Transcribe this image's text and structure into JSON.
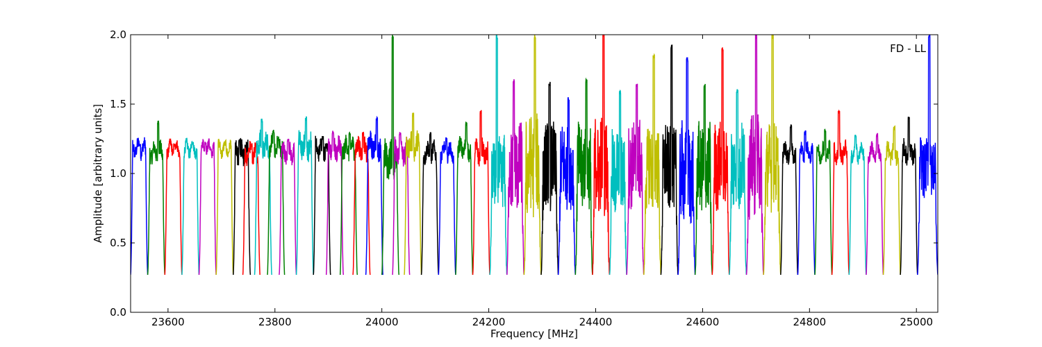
{
  "chart_data": {
    "type": "line",
    "title": "",
    "annotation": "FD - LL",
    "xlabel": "Frequency [MHz]",
    "ylabel": "Amplitude [arbitrary units]",
    "xlim": [
      23530,
      25040
    ],
    "ylim": [
      0.0,
      2.0
    ],
    "x_ticks": [
      23600,
      23800,
      24000,
      24200,
      24400,
      24600,
      24800,
      25000
    ],
    "y_ticks": [
      0.0,
      0.5,
      1.0,
      1.5,
      2.0
    ],
    "x_tick_labels": [
      "23600",
      "23800",
      "24000",
      "24200",
      "24400",
      "24600",
      "24800",
      "25000"
    ],
    "y_tick_labels": [
      "0.0",
      "0.5",
      "1.0",
      "1.5",
      "2.0"
    ],
    "grid": false,
    "color_cycle": [
      "#0000ff",
      "#008000",
      "#ff0000",
      "#00bfbf",
      "#bf00bf",
      "#bfbf00",
      "#000000"
    ],
    "channel_width_mhz": 32,
    "channel_start_mhz": 23530,
    "series": [
      {
        "color": "#0000ff",
        "x_range": [
          23530,
          23562
        ],
        "level": 1.18,
        "noise": 0.05,
        "peaks": [
          1.22
        ]
      },
      {
        "color": "#008000",
        "x_range": [
          23562,
          23594
        ],
        "level": 1.15,
        "noise": 0.06,
        "peaks": [
          1.38
        ]
      },
      {
        "color": "#ff0000",
        "x_range": [
          23594,
          23626
        ],
        "level": 1.18,
        "noise": 0.04,
        "peaks": [
          1.22
        ]
      },
      {
        "color": "#00bfbf",
        "x_range": [
          23626,
          23658
        ],
        "level": 1.18,
        "noise": 0.04,
        "peaks": [
          1.23
        ]
      },
      {
        "color": "#bf00bf",
        "x_range": [
          23658,
          23690
        ],
        "level": 1.18,
        "noise": 0.04,
        "peaks": [
          1.24
        ]
      },
      {
        "color": "#bfbf00",
        "x_range": [
          23690,
          23722
        ],
        "level": 1.18,
        "noise": 0.04,
        "peaks": [
          1.23
        ]
      },
      {
        "color": "#000000",
        "x_range": [
          23722,
          23754
        ],
        "level": 1.15,
        "noise": 0.08,
        "peaks": [
          1.25
        ]
      },
      {
        "color": "#ff0000",
        "x_range": [
          23740,
          23772
        ],
        "level": 1.15,
        "noise": 0.06,
        "peaks": [
          1.22
        ]
      },
      {
        "color": "#00bfbf",
        "x_range": [
          23762,
          23794
        ],
        "level": 1.2,
        "noise": 0.08,
        "peaks": [
          1.4
        ]
      },
      {
        "color": "#008000",
        "x_range": [
          23786,
          23818
        ],
        "level": 1.2,
        "noise": 0.06,
        "peaks": [
          1.32
        ]
      },
      {
        "color": "#bf00bf",
        "x_range": [
          23808,
          23840
        ],
        "level": 1.15,
        "noise": 0.06,
        "peaks": [
          1.25
        ]
      },
      {
        "color": "#00bfbf",
        "x_range": [
          23840,
          23872
        ],
        "level": 1.2,
        "noise": 0.08,
        "peaks": [
          1.41
        ]
      },
      {
        "color": "#000000",
        "x_range": [
          23872,
          23904
        ],
        "level": 1.18,
        "noise": 0.06,
        "peaks": [
          1.27
        ]
      },
      {
        "color": "#bf00bf",
        "x_range": [
          23896,
          23928
        ],
        "level": 1.18,
        "noise": 0.07,
        "peaks": [
          1.31
        ]
      },
      {
        "color": "#008000",
        "x_range": [
          23922,
          23954
        ],
        "level": 1.18,
        "noise": 0.07,
        "peaks": [
          1.31
        ]
      },
      {
        "color": "#ff0000",
        "x_range": [
          23946,
          23978
        ],
        "level": 1.18,
        "noise": 0.07,
        "peaks": [
          1.3
        ]
      },
      {
        "color": "#0000ff",
        "x_range": [
          23970,
          24002
        ],
        "level": 1.2,
        "noise": 0.08,
        "peaks": [
          1.41
        ]
      },
      {
        "color": "#008000",
        "x_range": [
          24000,
          24032
        ],
        "level": 1.1,
        "noise": 0.12,
        "peaks": [
          2.0
        ]
      },
      {
        "color": "#bf00bf",
        "x_range": [
          24020,
          24052
        ],
        "level": 1.15,
        "noise": 0.08,
        "peaks": [
          1.3
        ]
      },
      {
        "color": "#bfbf00",
        "x_range": [
          24042,
          24074
        ],
        "level": 1.2,
        "noise": 0.08,
        "peaks": [
          1.44
        ]
      },
      {
        "color": "#000000",
        "x_range": [
          24074,
          24106
        ],
        "level": 1.15,
        "noise": 0.06,
        "peaks": [
          1.3
        ]
      },
      {
        "color": "#0000ff",
        "x_range": [
          24106,
          24138
        ],
        "level": 1.15,
        "noise": 0.05,
        "peaks": [
          1.26
        ]
      },
      {
        "color": "#008000",
        "x_range": [
          24138,
          24170
        ],
        "level": 1.18,
        "noise": 0.06,
        "peaks": [
          1.37
        ]
      },
      {
        "color": "#ff0000",
        "x_range": [
          24170,
          24202
        ],
        "level": 1.15,
        "noise": 0.07,
        "peaks": [
          1.46
        ]
      },
      {
        "color": "#00bfbf",
        "x_range": [
          24202,
          24234
        ],
        "level": 1.0,
        "noise": 0.25,
        "peaks": [
          2.0
        ]
      },
      {
        "color": "#bf00bf",
        "x_range": [
          24234,
          24266
        ],
        "level": 1.05,
        "noise": 0.3,
        "peaks": [
          1.68
        ]
      },
      {
        "color": "#bfbf00",
        "x_range": [
          24266,
          24298
        ],
        "level": 1.05,
        "noise": 0.35,
        "peaks": [
          2.0
        ]
      },
      {
        "color": "#000000",
        "x_range": [
          24298,
          24330
        ],
        "level": 1.05,
        "noise": 0.3,
        "peaks": [
          1.66
        ]
      },
      {
        "color": "#0000ff",
        "x_range": [
          24330,
          24362
        ],
        "level": 1.05,
        "noise": 0.3,
        "peaks": [
          1.55
        ]
      },
      {
        "color": "#008000",
        "x_range": [
          24362,
          24394
        ],
        "level": 1.05,
        "noise": 0.3,
        "peaks": [
          1.68
        ]
      },
      {
        "color": "#ff0000",
        "x_range": [
          24394,
          24426
        ],
        "level": 1.05,
        "noise": 0.35,
        "peaks": [
          2.0
        ]
      },
      {
        "color": "#00bfbf",
        "x_range": [
          24426,
          24458
        ],
        "level": 1.0,
        "noise": 0.3,
        "peaks": [
          1.6
        ]
      },
      {
        "color": "#bf00bf",
        "x_range": [
          24458,
          24490
        ],
        "level": 1.05,
        "noise": 0.3,
        "peaks": [
          1.65
        ]
      },
      {
        "color": "#bfbf00",
        "x_range": [
          24490,
          24522
        ],
        "level": 1.05,
        "noise": 0.3,
        "peaks": [
          1.86
        ]
      },
      {
        "color": "#000000",
        "x_range": [
          24522,
          24554
        ],
        "level": 1.05,
        "noise": 0.3,
        "peaks": [
          1.93
        ]
      },
      {
        "color": "#0000ff",
        "x_range": [
          24554,
          24586
        ],
        "level": 1.0,
        "noise": 0.35,
        "peaks": [
          1.84
        ]
      },
      {
        "color": "#008000",
        "x_range": [
          24586,
          24618
        ],
        "level": 1.05,
        "noise": 0.3,
        "peaks": [
          1.65
        ]
      },
      {
        "color": "#ff0000",
        "x_range": [
          24618,
          24650
        ],
        "level": 1.05,
        "noise": 0.3,
        "peaks": [
          1.91
        ]
      },
      {
        "color": "#00bfbf",
        "x_range": [
          24650,
          24682
        ],
        "level": 1.05,
        "noise": 0.3,
        "peaks": [
          1.61
        ]
      },
      {
        "color": "#bf00bf",
        "x_range": [
          24682,
          24714
        ],
        "level": 1.05,
        "noise": 0.35,
        "peaks": [
          2.0
        ]
      },
      {
        "color": "#bfbf00",
        "x_range": [
          24714,
          24746
        ],
        "level": 1.05,
        "noise": 0.3,
        "peaks": [
          2.0
        ]
      },
      {
        "color": "#000000",
        "x_range": [
          24746,
          24778
        ],
        "level": 1.15,
        "noise": 0.06,
        "peaks": [
          1.35
        ]
      },
      {
        "color": "#0000ff",
        "x_range": [
          24778,
          24810
        ],
        "level": 1.15,
        "noise": 0.05,
        "peaks": [
          1.31
        ]
      },
      {
        "color": "#008000",
        "x_range": [
          24810,
          24842
        ],
        "level": 1.15,
        "noise": 0.06,
        "peaks": [
          1.32
        ]
      },
      {
        "color": "#ff0000",
        "x_range": [
          24842,
          24874
        ],
        "level": 1.15,
        "noise": 0.06,
        "peaks": [
          1.46
        ]
      },
      {
        "color": "#00bfbf",
        "x_range": [
          24874,
          24906
        ],
        "level": 1.15,
        "noise": 0.05,
        "peaks": [
          1.29
        ]
      },
      {
        "color": "#bf00bf",
        "x_range": [
          24906,
          24938
        ],
        "level": 1.15,
        "noise": 0.05,
        "peaks": [
          1.29
        ]
      },
      {
        "color": "#bfbf00",
        "x_range": [
          24938,
          24970
        ],
        "level": 1.15,
        "noise": 0.06,
        "peaks": [
          1.34
        ]
      },
      {
        "color": "#000000",
        "x_range": [
          24970,
          25002
        ],
        "level": 1.15,
        "noise": 0.07,
        "peaks": [
          1.41
        ]
      },
      {
        "color": "#0000ff",
        "x_range": [
          25002,
          25040
        ],
        "level": 1.05,
        "noise": 0.2,
        "peaks": [
          2.0
        ]
      }
    ],
    "dip_min": 0.27
  }
}
